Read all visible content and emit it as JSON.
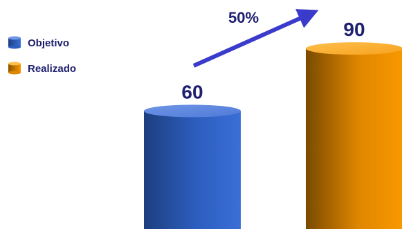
{
  "chart_data": {
    "type": "bar",
    "style": "3d-cylinder",
    "categories": [
      "Objetivo",
      "Realizado"
    ],
    "values": [
      60,
      90
    ],
    "data_labels": [
      "60",
      "90"
    ],
    "series": [
      {
        "name": "Objetivo",
        "color": "#2f5fc0"
      },
      {
        "name": "Realizado",
        "color": "#f39200"
      }
    ],
    "annotation": {
      "text": "50%",
      "type": "arrow",
      "from_category": "Objetivo",
      "to_category": "Realizado",
      "color": "#3a3acb"
    },
    "legend_position": "left",
    "grid": false,
    "axes_visible": false,
    "label_color": "#1f2070",
    "ylim": [
      0,
      100
    ],
    "title": "",
    "xlabel": "",
    "ylabel": ""
  }
}
